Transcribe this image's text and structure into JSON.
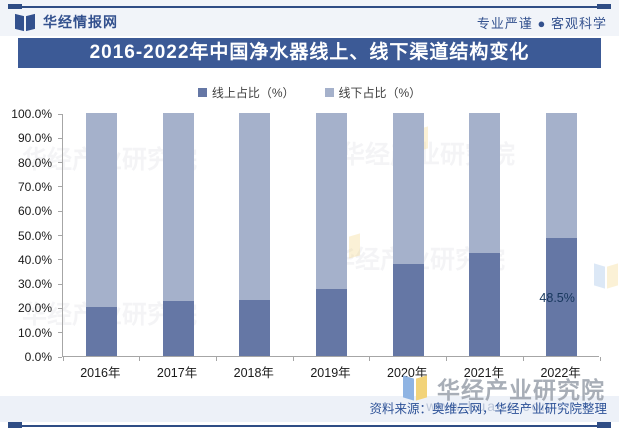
{
  "header": {
    "site_name": "华经情报网",
    "slogan": "专业严谨 ● 客观科学"
  },
  "banner": {
    "title": "2016-2022年中国净水器线上、线下渠道结构变化"
  },
  "chart_data": {
    "type": "bar",
    "stacked": true,
    "title": "2016-2022年中国净水器线上、线下渠道结构变化",
    "categories": [
      "2016年",
      "2017年",
      "2018年",
      "2019年",
      "2020年",
      "2021年",
      "2022年"
    ],
    "series": [
      {
        "name": "线上占比（%）",
        "color": "#6577a5",
        "values": [
          20.0,
          22.5,
          23.0,
          27.5,
          38.0,
          42.5,
          48.5
        ]
      },
      {
        "name": "线下占比（%）",
        "color": "#a5b1cb",
        "values": [
          80.0,
          77.5,
          77.0,
          72.5,
          62.0,
          57.5,
          51.5
        ]
      }
    ],
    "ylim": [
      0,
      100
    ],
    "ytick_labels": [
      "0.0%",
      "10.0%",
      "20.0%",
      "30.0%",
      "40.0%",
      "50.0%",
      "60.0%",
      "70.0%",
      "80.0%",
      "90.0%",
      "100.0%"
    ],
    "annotations": [
      {
        "text": "48.5%",
        "series_index": 0,
        "category_index": 6
      }
    ],
    "legend_position": "top",
    "grid": false,
    "accent_color": "#3c5a96"
  },
  "watermark": {
    "brand": "华经产业研究院",
    "url": "www.huaon.com",
    "tile_text": "华经产业研究院"
  },
  "footer": {
    "source": "资料来源：奥维云网，华经产业研究院整理"
  }
}
